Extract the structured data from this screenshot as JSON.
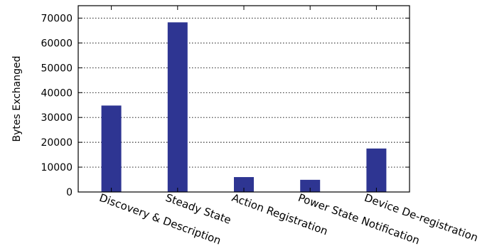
{
  "chart_data": {
    "type": "bar",
    "title": "",
    "xlabel": "",
    "ylabel": "Bytes Exchanged",
    "categories": [
      "Discovery & Description",
      "Steady State",
      "Action Registration",
      "Power State Notification",
      "Device De-registration"
    ],
    "values": [
      34800,
      68300,
      6000,
      4900,
      17500
    ],
    "ylim": [
      0,
      75000
    ],
    "yticks": [
      0,
      10000,
      20000,
      30000,
      40000,
      50000,
      60000,
      70000
    ],
    "grid": "horizontal dotted",
    "legend": "none",
    "bar_color": "#2e3592",
    "grid_color": "#000000"
  }
}
